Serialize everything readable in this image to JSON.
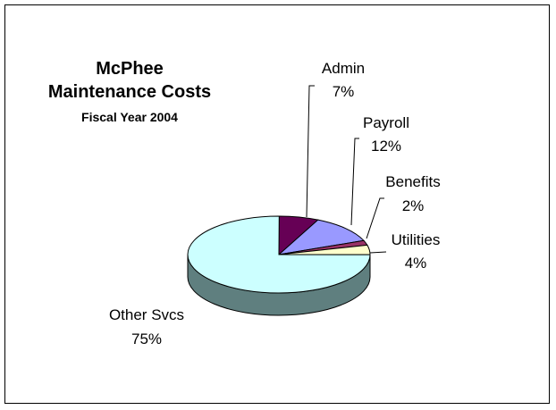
{
  "chart_data": {
    "type": "pie",
    "title": "McPhee",
    "title_line2": "Maintenance Costs",
    "subtitle": "Fiscal Year 2004",
    "slices": [
      {
        "label": "Admin",
        "value": 7,
        "display": "7%",
        "color": "#660055"
      },
      {
        "label": "Payroll",
        "value": 12,
        "display": "12%",
        "color": "#9999ff"
      },
      {
        "label": "Benefits",
        "value": 2,
        "display": "2%",
        "color": "#993366"
      },
      {
        "label": "Utilities",
        "value": 4,
        "display": "4%",
        "color": "#ffffcc"
      },
      {
        "label": "Other Svcs",
        "value": 75,
        "display": "75%",
        "color": "#ccffff"
      }
    ],
    "depth_color": "#5f7f7f",
    "legend": "none"
  }
}
